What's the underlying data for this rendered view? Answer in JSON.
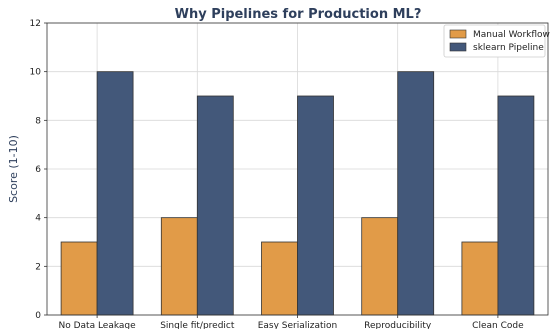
{
  "chart_data": {
    "type": "bar",
    "title": "Why Pipelines for Production ML?",
    "xlabel": "",
    "ylabel": "Score (1-10)",
    "ylim": [
      0,
      12
    ],
    "yticks": [
      0,
      2,
      4,
      6,
      8,
      10,
      12
    ],
    "grid": true,
    "legend_position": "top-right",
    "categories": [
      "No Data Leakage",
      "Single fit/predict",
      "Easy Serialization",
      "Reproducibility",
      "Clean Code"
    ],
    "series": [
      {
        "name": "Manual Workflow",
        "color": "#e19b48",
        "values": [
          3,
          4,
          3,
          4,
          3
        ]
      },
      {
        "name": "sklearn Pipeline",
        "color": "#43587a",
        "values": [
          10,
          9,
          9,
          10,
          9
        ]
      }
    ]
  }
}
